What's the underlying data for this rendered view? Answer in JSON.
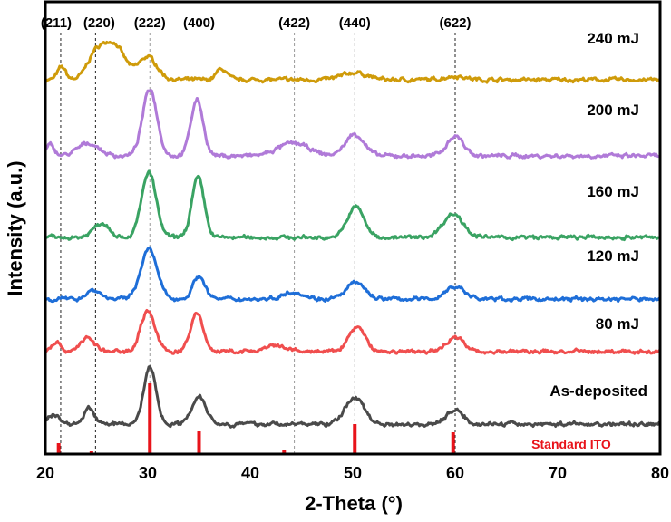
{
  "chart_data": {
    "type": "line",
    "title": "",
    "xlabel": "2-Theta (°)",
    "ylabel": "Intensity (a.u.)",
    "xlim": [
      20,
      80
    ],
    "ylim": [
      0,
      500
    ],
    "xticks": [
      "20",
      "30",
      "40",
      "50",
      "60",
      "70",
      "80"
    ],
    "grid": false,
    "reference_lines": [
      {
        "label": "(211)",
        "x": 21.5
      },
      {
        "label": "(220)",
        "x": 24.9
      },
      {
        "label": "(222)",
        "x": 30.2
      },
      {
        "label": "(400)",
        "x": 35.0
      },
      {
        "label": "(422)",
        "x": 44.3
      },
      {
        "label": "(440)",
        "x": 50.2
      },
      {
        "label": "(622)",
        "x": 60.0
      }
    ],
    "series": [
      {
        "name": "240 mJ",
        "color": "#cf9b0a",
        "offset": 413,
        "peaks": [
          [
            21.6,
            14,
            0.4
          ],
          [
            24.8,
            22,
            0.8
          ],
          [
            26.6,
            40,
            1.1
          ],
          [
            30.0,
            25,
            0.9
          ],
          [
            37.2,
            12,
            0.5
          ],
          [
            50.2,
            8,
            1.2
          ],
          [
            60.0,
            4,
            1.0
          ]
        ]
      },
      {
        "name": "200 mJ",
        "color": "#b07ad8",
        "offset": 329,
        "peaks": [
          [
            20.5,
            12,
            0.4
          ],
          [
            24.2,
            14,
            1.0
          ],
          [
            30.2,
            74,
            0.7
          ],
          [
            34.8,
            62,
            0.6
          ],
          [
            44.2,
            14,
            1.5
          ],
          [
            50.2,
            24,
            0.9
          ],
          [
            60.0,
            22,
            0.8
          ]
        ]
      },
      {
        "name": "160 mJ",
        "color": "#3aa363",
        "offset": 239,
        "peaks": [
          [
            25.5,
            16,
            0.8
          ],
          [
            30.1,
            72,
            0.7
          ],
          [
            34.9,
            66,
            0.6
          ],
          [
            50.3,
            34,
            0.8
          ],
          [
            59.8,
            26,
            1.0
          ]
        ]
      },
      {
        "name": "120 mJ",
        "color": "#1e6ed8",
        "offset": 171,
        "peaks": [
          [
            24.7,
            10,
            0.7
          ],
          [
            30.1,
            55,
            0.8
          ],
          [
            35.0,
            25,
            0.6
          ],
          [
            44.2,
            8,
            1.0
          ],
          [
            50.3,
            18,
            0.9
          ],
          [
            60.0,
            14,
            0.9
          ]
        ]
      },
      {
        "name": "80 mJ",
        "color": "#f04e4e",
        "offset": 113,
        "peaks": [
          [
            21.0,
            10,
            0.5
          ],
          [
            24.1,
            15,
            0.7
          ],
          [
            30.0,
            45,
            0.7
          ],
          [
            34.8,
            43,
            0.6
          ],
          [
            42.5,
            6,
            1.0
          ],
          [
            50.4,
            27,
            0.8
          ],
          [
            60.0,
            17,
            0.8
          ]
        ]
      },
      {
        "name": "As-deposited",
        "color": "#4a4a4a",
        "offset": 33,
        "peaks": [
          [
            20.8,
            10,
            0.6
          ],
          [
            24.3,
            18,
            0.5
          ],
          [
            30.2,
            63,
            0.6
          ],
          [
            35.0,
            31,
            0.7
          ],
          [
            50.2,
            30,
            0.9
          ],
          [
            60.0,
            16,
            0.8
          ]
        ]
      }
    ],
    "standard": {
      "name": "Standard ITO",
      "color": "#e8131a",
      "sticks": [
        [
          21.3,
          12
        ],
        [
          24.5,
          3
        ],
        [
          30.2,
          78
        ],
        [
          35.0,
          25
        ],
        [
          43.3,
          4
        ],
        [
          50.2,
          33
        ],
        [
          59.8,
          24
        ]
      ]
    }
  }
}
